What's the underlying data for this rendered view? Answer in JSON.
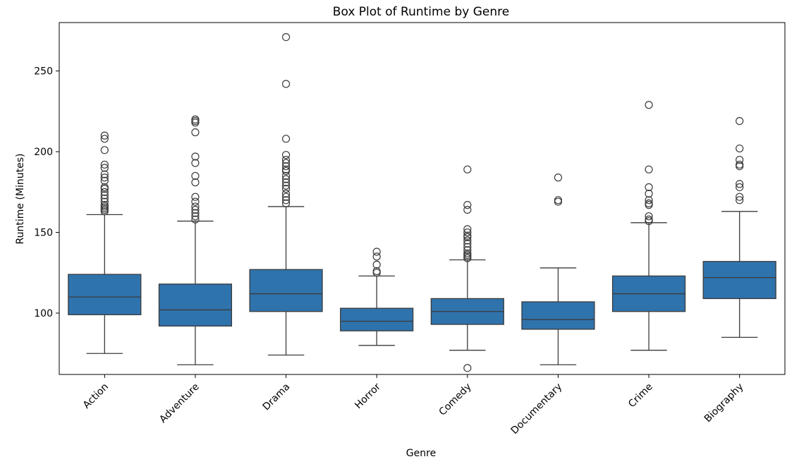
{
  "chart_data": {
    "type": "box",
    "title": "Box Plot of Runtime by Genre",
    "xlabel": "Genre",
    "ylabel": "Runtime (Minutes)",
    "ylim": [
      62,
      280
    ],
    "yticks": [
      100,
      150,
      200,
      250
    ],
    "box_color": "#2f73ad",
    "line_color": "#3b3b3b",
    "categories": [
      "Action",
      "Adventure",
      "Drama",
      "Horror",
      "Comedy",
      "Documentary",
      "Crime",
      "Biography"
    ],
    "boxes": [
      {
        "whisker_low": 75,
        "q1": 99,
        "median": 110,
        "q3": 124,
        "whisker_high": 161,
        "outliers": [
          163,
          164,
          165,
          166,
          167,
          169,
          171,
          173,
          175,
          177,
          178,
          182,
          184,
          186,
          190,
          192,
          201,
          208,
          210
        ]
      },
      {
        "whisker_low": 68,
        "q1": 92,
        "median": 102,
        "q3": 118,
        "whisker_high": 157,
        "outliers": [
          158,
          160,
          162,
          164,
          166,
          169,
          172,
          181,
          185,
          193,
          197,
          212,
          218,
          219,
          220
        ]
      },
      {
        "whisker_low": 74,
        "q1": 101,
        "median": 112,
        "q3": 127,
        "whisker_high": 166,
        "outliers": [
          168,
          170,
          172,
          174,
          177,
          179,
          181,
          183,
          185,
          188,
          189,
          191,
          193,
          195,
          198,
          208,
          242,
          271
        ]
      },
      {
        "whisker_low": 80,
        "q1": 89,
        "median": 95,
        "q3": 103,
        "whisker_high": 123,
        "outliers": [
          125,
          126,
          130,
          135,
          138
        ]
      },
      {
        "whisker_low": 77,
        "q1": 93,
        "median": 101,
        "q3": 109,
        "whisker_high": 133,
        "outliers": [
          66,
          134,
          135,
          136,
          137,
          139,
          141,
          143,
          145,
          147,
          148,
          150,
          152,
          164,
          167,
          189
        ]
      },
      {
        "whisker_low": 68,
        "q1": 90,
        "median": 96,
        "q3": 107,
        "whisker_high": 128,
        "outliers": [
          169,
          170,
          184
        ]
      },
      {
        "whisker_low": 77,
        "q1": 101,
        "median": 112,
        "q3": 123,
        "whisker_high": 156,
        "outliers": [
          157,
          158,
          160,
          167,
          168,
          170,
          174,
          178,
          189,
          229
        ]
      },
      {
        "whisker_low": 85,
        "q1": 109,
        "median": 122,
        "q3": 132,
        "whisker_high": 163,
        "outliers": [
          170,
          172,
          178,
          180,
          191,
          192,
          195,
          202,
          219
        ]
      }
    ]
  }
}
